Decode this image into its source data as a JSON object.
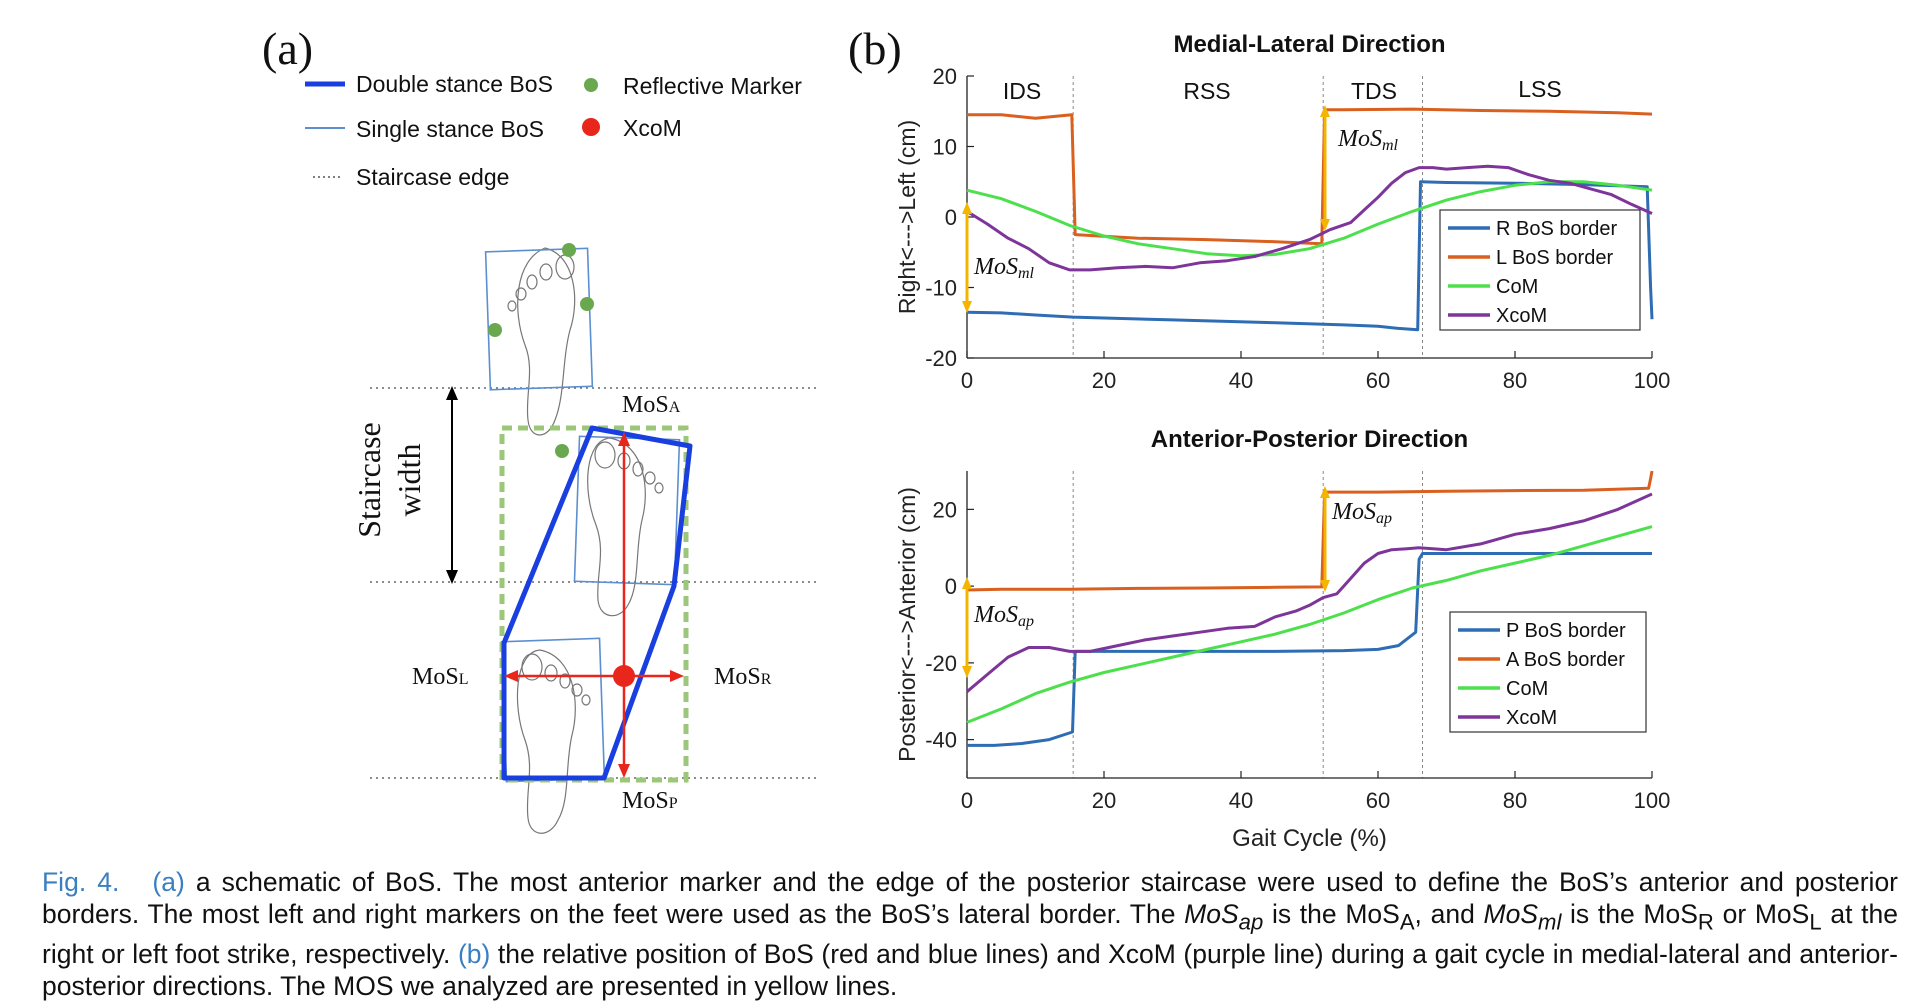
{
  "panel_a": {
    "label": "(a)",
    "legend": [
      {
        "label": "Double stance BoS",
        "color": "#1a3fe0"
      },
      {
        "label": "Single stance BoS",
        "color": "#5b8fd0"
      },
      {
        "label": "Staircase edge",
        "color": "#555555"
      },
      {
        "label": "Reflective Marker",
        "color": "#6aa84f"
      },
      {
        "label": "XcoM",
        "color": "#e8261c"
      }
    ],
    "staircase_label_line1": "Staircase",
    "staircase_label_line2": "width",
    "mos_labels": {
      "a_main": "MoS",
      "a_sub": "A",
      "l_main": "MoS",
      "l_sub": "L",
      "r_main": "MoS",
      "r_sub": "R",
      "p_main": "MoS",
      "p_sub": "P"
    }
  },
  "panel_b": {
    "label": "(b)",
    "phases": [
      "IDS",
      "RSS",
      "TDS",
      "LSS"
    ]
  },
  "chart_data": [
    {
      "type": "line",
      "title": "Medial-Lateral Direction",
      "xlabel": "",
      "ylabel": "Right<--->Left  (cm)",
      "xlim": [
        0,
        100
      ],
      "ylim": [
        -20,
        20
      ],
      "xticks": [
        0,
        20,
        40,
        60,
        80,
        100
      ],
      "yticks": [
        -20,
        -10,
        0,
        10,
        20
      ],
      "phase_boundaries": [
        15.5,
        52,
        66.5
      ],
      "legend_position": "lower-right",
      "series": [
        {
          "name": "R BoS border",
          "color": "#2e6db4",
          "x": [
            0,
            5,
            10,
            15.5,
            30,
            45,
            55,
            60,
            63,
            65.8,
            66.2,
            70,
            80,
            90,
            99.3,
            99.8,
            100
          ],
          "y": [
            -13.5,
            -13.6,
            -13.9,
            -14.2,
            -14.6,
            -15.0,
            -15.3,
            -15.5,
            -15.8,
            -16.0,
            5.0,
            4.9,
            4.8,
            4.6,
            4.3,
            -10.0,
            -14.5
          ]
        },
        {
          "name": "L BoS border",
          "color": "#d9601f",
          "x": [
            0,
            5,
            10,
            15.3,
            15.8,
            25,
            35,
            45,
            51.8,
            52.2,
            55,
            65,
            75,
            85,
            95,
            100
          ],
          "y": [
            14.5,
            14.5,
            14.0,
            14.5,
            -2.5,
            -3.0,
            -3.2,
            -3.5,
            -3.8,
            15.2,
            15.2,
            15.3,
            15.1,
            15.0,
            14.8,
            14.6
          ]
        },
        {
          "name": "CoM",
          "color": "#4de04d",
          "x": [
            0,
            5,
            10,
            15,
            20,
            25,
            30,
            35,
            40,
            45,
            50,
            55,
            60,
            65,
            70,
            75,
            80,
            85,
            90,
            95,
            100
          ],
          "y": [
            3.8,
            2.6,
            0.8,
            -1.2,
            -2.7,
            -3.8,
            -4.5,
            -5.2,
            -5.5,
            -5.3,
            -4.5,
            -3.0,
            -1.0,
            0.8,
            2.4,
            3.6,
            4.5,
            5.0,
            5.0,
            4.5,
            3.8
          ]
        },
        {
          "name": "XcoM",
          "color": "#7d3599",
          "x": [
            0,
            3,
            6,
            9,
            12,
            15,
            18,
            22,
            26,
            30,
            34,
            38,
            42,
            46,
            50,
            53,
            56,
            58,
            60,
            62,
            64,
            66,
            68,
            70,
            73,
            76,
            79,
            82,
            85,
            88,
            91,
            94,
            97,
            100
          ],
          "y": [
            0.8,
            -1.0,
            -3.0,
            -4.5,
            -6.5,
            -7.5,
            -7.5,
            -7.2,
            -7.0,
            -7.2,
            -6.5,
            -6.2,
            -5.6,
            -4.5,
            -3.2,
            -1.8,
            -0.8,
            1.0,
            2.8,
            4.8,
            6.3,
            7.0,
            7.0,
            6.8,
            7.0,
            7.2,
            7.0,
            6.0,
            5.2,
            4.8,
            4.0,
            3.2,
            1.8,
            0.5
          ]
        }
      ]
    },
    {
      "type": "line",
      "title": "Anterior-Posterior Direction",
      "xlabel": "Gait Cycle   (%)",
      "ylabel": "Posterior<--->Anterior  (cm)",
      "xlim": [
        0,
        100
      ],
      "ylim": [
        -50,
        30
      ],
      "xticks": [
        0,
        20,
        40,
        60,
        80,
        100
      ],
      "yticks": [
        -40,
        -20,
        0,
        20
      ],
      "phase_boundaries": [
        15.5,
        52,
        66.5
      ],
      "legend_position": "lower-right",
      "series": [
        {
          "name": "P BoS border",
          "color": "#2e6db4",
          "x": [
            0,
            4,
            8,
            12,
            15.4,
            15.8,
            25,
            35,
            45,
            55,
            60,
            63,
            65.5,
            66.0,
            66.5,
            75,
            85,
            95,
            100
          ],
          "y": [
            -41.5,
            -41.5,
            -41.0,
            -40.0,
            -38.0,
            -17.0,
            -17.0,
            -17.0,
            -17.0,
            -16.8,
            -16.5,
            -15.5,
            -12.0,
            7.0,
            8.5,
            8.5,
            8.5,
            8.5,
            8.5
          ]
        },
        {
          "name": "A BoS border",
          "color": "#d9601f",
          "x": [
            0,
            5,
            15,
            25,
            35,
            45,
            51.8,
            52.2,
            60,
            70,
            80,
            90,
            99.5,
            99.8,
            100
          ],
          "y": [
            -1.0,
            -0.8,
            -0.8,
            -0.6,
            -0.5,
            -0.3,
            -0.2,
            24.5,
            24.5,
            24.7,
            24.9,
            25.0,
            25.5,
            28.0,
            30.0
          ]
        },
        {
          "name": "CoM",
          "color": "#4de04d",
          "x": [
            0,
            5,
            10,
            15,
            20,
            25,
            30,
            35,
            40,
            45,
            50,
            55,
            60,
            65,
            70,
            75,
            80,
            85,
            90,
            95,
            100
          ],
          "y": [
            -35.5,
            -32.0,
            -28.0,
            -25.0,
            -22.5,
            -20.5,
            -18.5,
            -16.5,
            -14.5,
            -12.5,
            -10.0,
            -7.0,
            -3.5,
            -0.5,
            1.5,
            4.0,
            6.0,
            8.0,
            10.5,
            13.0,
            15.5
          ]
        },
        {
          "name": "XcoM",
          "color": "#7d3599",
          "x": [
            0,
            3,
            6,
            9,
            12,
            15,
            18,
            22,
            26,
            30,
            34,
            38,
            42,
            45,
            48,
            50,
            52,
            54,
            56,
            58,
            60,
            62,
            64,
            66,
            70,
            75,
            80,
            85,
            90,
            95,
            100
          ],
          "y": [
            -27.5,
            -23.0,
            -18.5,
            -16.0,
            -16.0,
            -17.0,
            -17.0,
            -15.5,
            -14.0,
            -13.0,
            -12.0,
            -11.0,
            -10.5,
            -8.0,
            -6.5,
            -5.0,
            -3.0,
            -2.0,
            2.0,
            6.0,
            8.5,
            9.5,
            9.7,
            10.0,
            9.5,
            11.0,
            13.5,
            15.0,
            17.0,
            20.0,
            24.0
          ]
        }
      ]
    }
  ],
  "mos_annotations": {
    "ml_left_main": "MoS",
    "ml_left_sub": "ml",
    "ml_right_main": "MoS",
    "ml_right_sub": "ml",
    "ap_left_main": "MoS",
    "ap_left_sub": "ap",
    "ap_right_main": "MoS",
    "ap_right_sub": "ap",
    "color": "#f5b400"
  },
  "caption": {
    "fig_label": "Fig. 4.",
    "ref_a": "(a)",
    "t1": " a schematic of BoS. The most anterior marker and the edge of the posterior staircase were used to define the BoS’s anterior and posterior borders. The most left and right markers on the feet were used as the BoS’s lateral border. The ",
    "mos_ap": "MoS",
    "mos_ap_sub": "ap",
    "t2": " is the MoS",
    "sub_A": "A",
    "t3": ", and ",
    "mos_ml": "MoS",
    "mos_ml_sub": "ml",
    "t4": " is the MoS",
    "sub_R": "R",
    "t5": " or MoS",
    "sub_L": "L",
    "t6": " at the right or left foot strike, respectively. ",
    "ref_b": "(b)",
    "t7": " the relative position of BoS (red and blue lines) and XcoM (purple line) during a gait cycle in medial-lateral and anterior-posterior directions. The MOS we analyzed are presented in yellow lines."
  }
}
